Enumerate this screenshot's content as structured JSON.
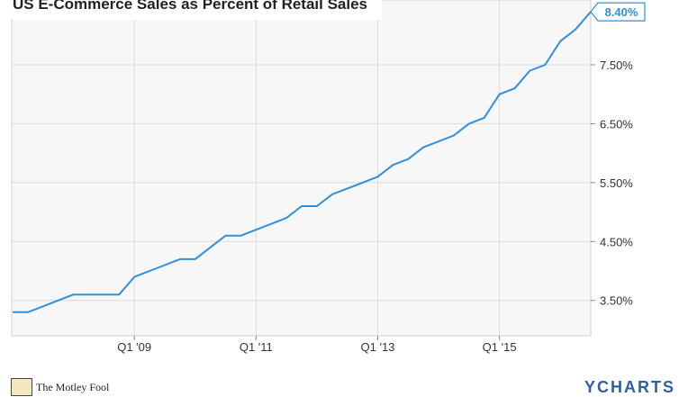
{
  "chart_data": {
    "type": "line",
    "title": "US E-Commerce Sales as Percent of Retail Sales",
    "xlabel": "",
    "ylabel": "",
    "x_ticks": [
      "Q1 '09",
      "Q1 '11",
      "Q1 '13",
      "Q1 '15"
    ],
    "y_ticks": [
      "3.50%",
      "4.50%",
      "5.50%",
      "6.50%",
      "7.50%"
    ],
    "ylim": [
      2.9,
      8.6
    ],
    "grid": true,
    "end_label": "8.40%",
    "series": [
      {
        "name": "",
        "color": "#2f8fdc",
        "x": [
          "Q1 '07",
          "Q2 '07",
          "Q3 '07",
          "Q4 '07",
          "Q1 '08",
          "Q2 '08",
          "Q3 '08",
          "Q4 '08",
          "Q1 '09",
          "Q2 '09",
          "Q3 '09",
          "Q4 '09",
          "Q1 '10",
          "Q2 '10",
          "Q3 '10",
          "Q4 '10",
          "Q1 '11",
          "Q2 '11",
          "Q3 '11",
          "Q4 '11",
          "Q1 '12",
          "Q2 '12",
          "Q3 '12",
          "Q4 '12",
          "Q1 '13",
          "Q2 '13",
          "Q3 '13",
          "Q4 '13",
          "Q1 '14",
          "Q2 '14",
          "Q3 '14",
          "Q4 '14",
          "Q1 '15",
          "Q2 '15",
          "Q3 '15",
          "Q4 '15",
          "Q1 '16",
          "Q2 '16",
          "Q3 '16"
        ],
        "values": [
          3.3,
          3.3,
          3.4,
          3.5,
          3.6,
          3.6,
          3.6,
          3.6,
          3.9,
          4.0,
          4.1,
          4.2,
          4.2,
          4.4,
          4.6,
          4.6,
          4.7,
          4.8,
          4.9,
          5.1,
          5.1,
          5.3,
          5.4,
          5.5,
          5.6,
          5.8,
          5.9,
          6.1,
          6.2,
          6.3,
          6.5,
          6.6,
          7.0,
          7.1,
          7.4,
          7.5,
          7.9,
          8.1,
          8.4
        ]
      }
    ]
  },
  "footer": {
    "brand_left": "The Motley Fool",
    "brand_right": "YCHARTS"
  }
}
